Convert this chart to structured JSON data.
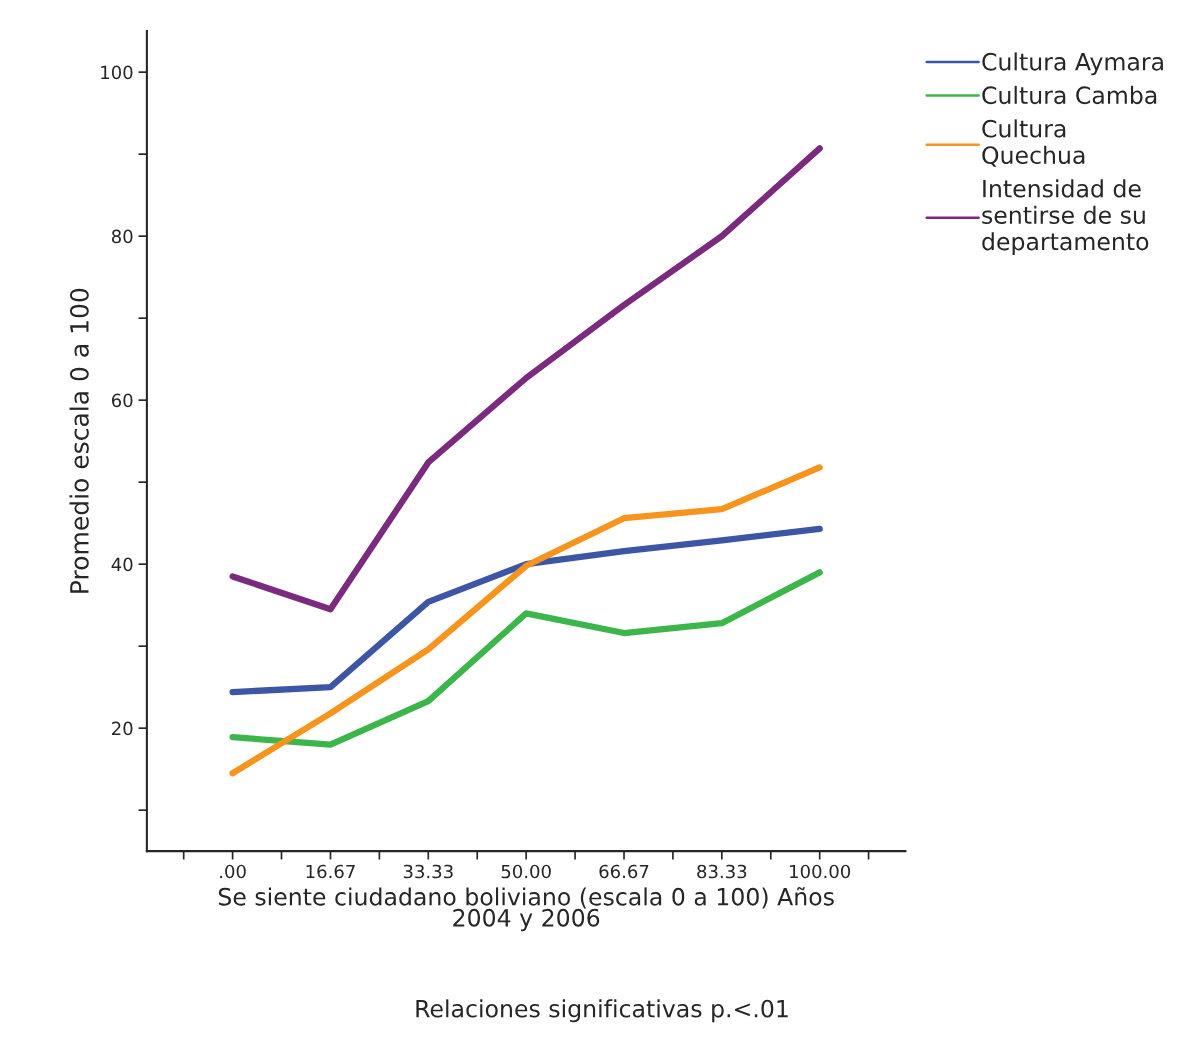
{
  "chart_data": {
    "type": "line",
    "xlabel": "Se siente ciudadano boliviano (escala 0 a 100) Años\n2004 y 2006",
    "ylabel": "Promedio escala 0 a 100",
    "annotations": [
      "Relaciones significativas p.<.01"
    ],
    "x": [
      0,
      16.67,
      33.33,
      50,
      66.67,
      83.33,
      100
    ],
    "series": [
      {
        "name": "Cultura Aymara",
        "color": "#3c56a5",
        "values": [
          24.4,
          25.0,
          35.4,
          40.0,
          41.6,
          42.9,
          44.3
        ]
      },
      {
        "name": "Cultura Camba",
        "color": "#3cb54a",
        "values": [
          18.9,
          18.0,
          23.3,
          34.0,
          31.6,
          32.8,
          39.0
        ]
      },
      {
        "name": "Cultura\nQuechua",
        "color": "#f7941d",
        "values": [
          14.5,
          21.8,
          29.6,
          39.8,
          45.6,
          46.7,
          51.8
        ]
      },
      {
        "name": "Intensidad de\nsentirse de su\ndepartamento",
        "color": "#7b2a7e",
        "values": [
          38.5,
          34.5,
          52.4,
          62.7,
          71.6,
          80.0,
          90.7
        ]
      }
    ],
    "xlim": [
      -14.6,
      114.6
    ],
    "xticks": [
      {
        "value": -8.33,
        "label": null
      },
      {
        "value": 0,
        "label": ".00"
      },
      {
        "value": 8.33,
        "label": null
      },
      {
        "value": 16.67,
        "label": "16.67"
      },
      {
        "value": 25,
        "label": null
      },
      {
        "value": 33.33,
        "label": "33.33"
      },
      {
        "value": 41.67,
        "label": null
      },
      {
        "value": 50,
        "label": "50.00"
      },
      {
        "value": 58.33,
        "label": null
      },
      {
        "value": 66.67,
        "label": "66.67"
      },
      {
        "value": 75,
        "label": null
      },
      {
        "value": 83.33,
        "label": "83.33"
      },
      {
        "value": 91.67,
        "label": null
      },
      {
        "value": 100,
        "label": "100.00"
      },
      {
        "value": 108.33,
        "label": null
      }
    ],
    "ylim": [
      5,
      105
    ],
    "yticks": [
      {
        "value": 10,
        "label": null
      },
      20,
      {
        "value": 30,
        "label": null
      },
      40,
      {
        "value": 50,
        "label": null
      },
      60,
      {
        "value": 70,
        "label": null
      },
      80,
      {
        "value": 90,
        "label": null
      },
      100
    ],
    "grid": false,
    "legend": "top right",
    "marker": "none",
    "line_style": "solid"
  }
}
